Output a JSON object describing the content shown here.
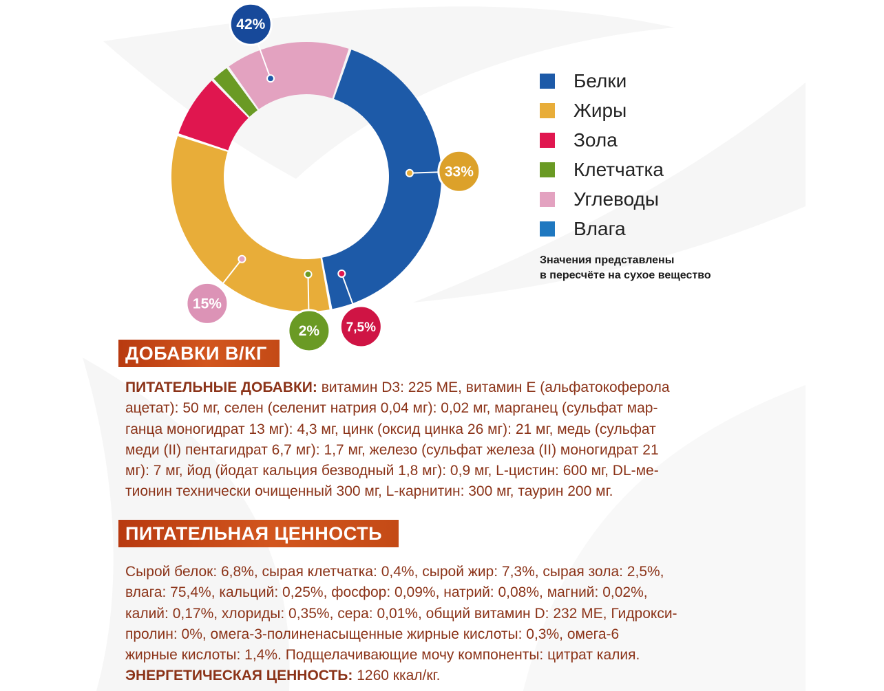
{
  "chart_data": {
    "type": "donut",
    "title": "",
    "legend_position": "right",
    "slices": [
      {
        "name": "Белки",
        "value": 42,
        "label": "42%",
        "color": "#1d5aa8",
        "callout_color": "#17499a"
      },
      {
        "name": "Жиры",
        "value": 33,
        "label": "33%",
        "color": "#e8ad39",
        "callout_color": "#dca12a"
      },
      {
        "name": "Зола",
        "value": 7.5,
        "label": "7,5%",
        "color": "#e0164f",
        "callout_color": "#cf1444"
      },
      {
        "name": "Клетчатка",
        "value": 2,
        "label": "2%",
        "color": "#6a9a24",
        "callout_color": "#6a9a24"
      },
      {
        "name": "Углеводы",
        "value": 15,
        "label": "15%",
        "color": "#e3a2c0",
        "callout_color": "#dc93b6"
      }
    ]
  },
  "legend": {
    "items": [
      {
        "label": "Белки",
        "color": "#1d5aa8"
      },
      {
        "label": "Жиры",
        "color": "#e8ad39"
      },
      {
        "label": "Зола",
        "color": "#e0164f"
      },
      {
        "label": "Клетчатка",
        "color": "#6a9a24"
      },
      {
        "label": "Углеводы",
        "color": "#e3a2c0"
      },
      {
        "label": "Влага",
        "color": "#1f78c0"
      }
    ],
    "note_line1": "Значения представлены",
    "note_line2": "в пересчёте на сухое вещество"
  },
  "additives": {
    "heading": "ДОБАВКИ В/КГ",
    "label": "ПИТАТЕЛЬНЫЕ ДОБАВКИ:",
    "lines": [
      " витамин D3: 225 МЕ, витамин Е (альфатокоферола",
      "ацетат): 50 мг, селен (селенит натрия 0,04 мг): 0,02 мг, марганец (сульфат мар-",
      "ганца моногидрат 13 мг): 4,3 мг, цинк (оксид цинка 26 мг): 21 мг, медь (сульфат",
      "меди (II) пентагидрат 6,7 мг): 1,7 мг, железо (сульфат железа (II) моногидрат 21",
      "мг): 7 мг, йод (йодат кальция безводный 1,8 мг): 0,9 мг, L-цистин: 600 мг, DL-ме-",
      "тионин технически очищенный 300 мг, L-карнитин: 300 мг, таурин 200 мг."
    ]
  },
  "nutrition": {
    "heading": "ПИТАТЕЛЬНАЯ ЦЕННОСТЬ",
    "lines": [
      "Сырой белок: 6,8%, сырая клетчатка: 0,4%, сырой жир: 7,3%, сырая зола: 2,5%,",
      "влага: 75,4%, кальций: 0,25%, фосфор: 0,09%, натрий: 0,08%, магний: 0,02%,",
      "калий: 0,17%, хлориды: 0,35%, сера: 0,01%, общий витамин D: 232 МЕ, Гидрокси-",
      "пролин: 0%, омега-3-полиненасыщенные жирные кислоты: 0,3%, омега-6",
      "жирные кислоты: 1,4%. Подщелачивающие мочу компоненты: цитрат калия."
    ],
    "energy_label": "ЭНЕРГЕТИЧЕСКАЯ ЦЕННОСТЬ:",
    "energy_value": "  1260 ккал/кг."
  }
}
